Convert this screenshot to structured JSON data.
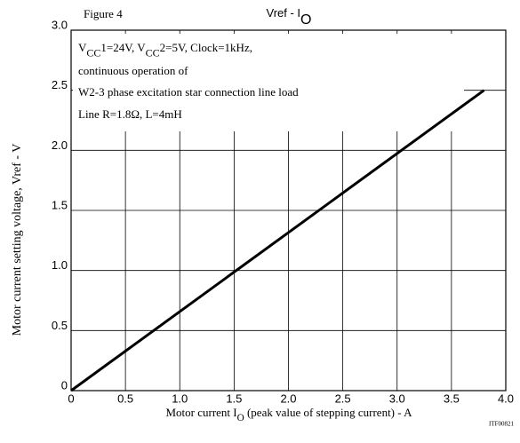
{
  "chart_data": {
    "type": "line",
    "figure": "Figure 4",
    "title": [
      "Vref - I",
      "O"
    ],
    "annotation": [
      [
        "V",
        "CC",
        "1=24V, V",
        "CC",
        "2=5V, Clock=1kHz,"
      ],
      [
        "continuous operation of"
      ],
      [
        "W2-3 phase excitation star connection line load"
      ],
      [
        "Line R=1.8Ω, L=4mH"
      ]
    ],
    "x_label": [
      "Motor current I",
      "O",
      " (peak value of stepping current) - A"
    ],
    "y_label": "Motor current setting voltage, Vref - V",
    "code": "ITF00821",
    "x": [
      0,
      3.8
    ],
    "series": [
      {
        "name": "Vref",
        "color": "#000000",
        "values": [
          0,
          2.5
        ]
      }
    ],
    "xlim": [
      0,
      4
    ],
    "xticks": [
      0,
      0.5,
      {
        "value": 1,
        "label": "1.0"
      },
      1.5,
      {
        "value": 2,
        "label": "2.0"
      },
      2.5,
      {
        "value": 3,
        "label": "3.0"
      },
      3.5,
      {
        "value": 4,
        "label": "4.0"
      }
    ],
    "ylim": [
      0,
      3
    ],
    "yticks": [
      0,
      0.5,
      {
        "value": 1,
        "label": "1.0"
      },
      1.5,
      {
        "value": 2,
        "label": "2.0"
      },
      2.5,
      {
        "value": 3,
        "label": "3.0"
      }
    ],
    "grid": true
  }
}
